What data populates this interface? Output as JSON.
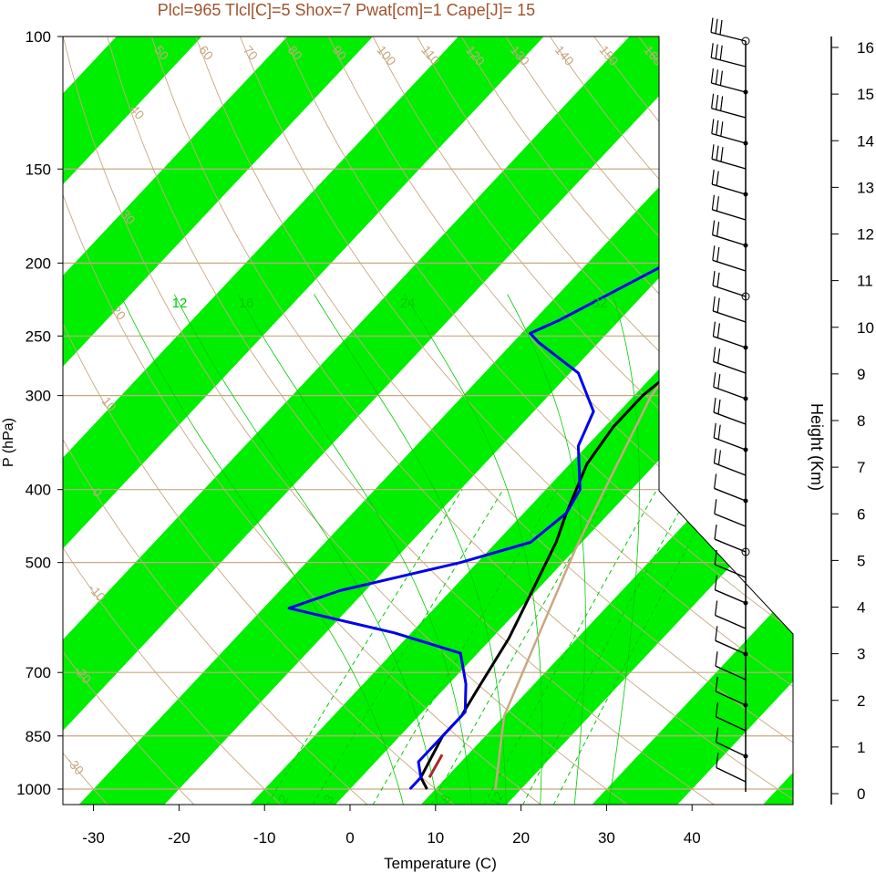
{
  "chart_data": {
    "type": "line",
    "title": "Plcl=965 Tlcl[C]=5 Shox=7 Pwat[cm]=1 Cape[J]= 15",
    "xlabel": "Temperature (C)",
    "ylabel": "P (hPa)",
    "y2label": "Height (Km)",
    "xlim": [
      -33,
      43
    ],
    "ylim": [
      1050,
      100
    ],
    "pressure_ticks": [
      "100",
      "150",
      "200",
      "250",
      "300",
      "400",
      "500",
      "700",
      "850",
      "1000"
    ],
    "temperature_ticks": [
      "-30",
      "-20",
      "-10",
      "0",
      "10",
      "20",
      "30",
      "40"
    ],
    "height_ticks": [
      "0",
      "1",
      "2",
      "3",
      "4",
      "5",
      "6",
      "7",
      "8",
      "9",
      "10",
      "11",
      "12",
      "13",
      "14",
      "15",
      "16"
    ],
    "series": [
      {
        "id": "temperature",
        "color": "#000000",
        "points": [
          [
            9,
            1000
          ],
          [
            7,
            965
          ],
          [
            5,
            850
          ],
          [
            5,
            800
          ],
          [
            4,
            740
          ],
          [
            2,
            630
          ],
          [
            -3,
            470
          ],
          [
            -5,
            430
          ],
          [
            -8,
            370
          ],
          [
            -9,
            330
          ],
          [
            -9,
            300
          ],
          [
            -7,
            250
          ],
          [
            -3,
            220
          ],
          [
            2,
            190
          ],
          [
            5,
            165
          ],
          [
            8,
            145
          ],
          [
            12,
            125
          ],
          [
            16,
            110
          ],
          [
            16,
            102
          ]
        ]
      },
      {
        "id": "dewpoint",
        "color": "#0000ee",
        "points": [
          [
            7,
            1000
          ],
          [
            7,
            965
          ],
          [
            5,
            920
          ],
          [
            5,
            860
          ],
          [
            5,
            790
          ],
          [
            2,
            725
          ],
          [
            -2,
            660
          ],
          [
            -12,
            620
          ],
          [
            -27,
            575
          ],
          [
            -23,
            545
          ],
          [
            -12,
            500
          ],
          [
            -6,
            470
          ],
          [
            -5,
            430
          ],
          [
            -6,
            400
          ],
          [
            -11,
            350
          ],
          [
            -13,
            315
          ],
          [
            -19,
            280
          ],
          [
            -27,
            255
          ],
          [
            -29,
            248
          ],
          [
            -27,
            238
          ],
          [
            -10,
            150
          ],
          [
            6,
            103
          ]
        ]
      },
      {
        "id": "parcel",
        "color": "#c8a882",
        "points": [
          [
            17,
            1000
          ],
          [
            10,
            800
          ],
          [
            5,
            620
          ],
          [
            0,
            480
          ],
          [
            -4,
            380
          ],
          [
            -8,
            300
          ],
          [
            -10,
            230
          ],
          [
            -5,
            200
          ],
          [
            5,
            150
          ],
          [
            17,
            110
          ]
        ]
      },
      {
        "id": "lcl-segment",
        "color": "#a52a2a",
        "points": [
          [
            8,
            965
          ],
          [
            7,
            900
          ]
        ]
      }
    ],
    "dry_adiabat_labels": [
      "-30",
      "-20",
      "-10",
      "0",
      "10",
      "20",
      "30",
      "40",
      "50",
      "60",
      "70",
      "80",
      "90",
      "100",
      "110",
      "120",
      "130",
      "140",
      "150",
      "160"
    ],
    "isotherm_labels": [
      "-10",
      "0",
      "10",
      "20",
      "30",
      "10",
      "30"
    ],
    "mixing_ratio_labels": [
      "2",
      "3",
      "8",
      "12"
    ],
    "moist_adiabat_labels": [
      "12",
      "16",
      "24",
      "32"
    ],
    "wind_barbs": "left-pointing barbs, strong winds aloft",
    "shading": "green skewed isotherm bands"
  }
}
